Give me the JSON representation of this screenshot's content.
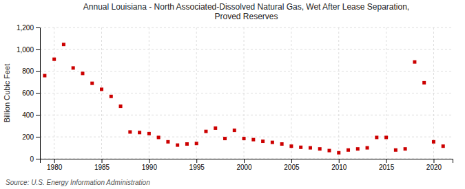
{
  "chart_data": {
    "type": "scatter",
    "title": "Annual Louisiana - North Associated-Dissolved Natural Gas, Wet After Lease Separation,\nProved Reserves",
    "ylabel": "Billion Cubic Feet",
    "annotation": "Source: U.S. Energy Information Administration",
    "color": "#cc0000",
    "marker": "square",
    "grid": true,
    "x": [
      1979,
      1980,
      1981,
      1982,
      1983,
      1984,
      1985,
      1986,
      1987,
      1988,
      1989,
      1990,
      1991,
      1992,
      1993,
      1994,
      1995,
      1996,
      1997,
      1998,
      1999,
      2000,
      2001,
      2002,
      2003,
      2004,
      2005,
      2006,
      2007,
      2008,
      2009,
      2010,
      2011,
      2012,
      2013,
      2014,
      2015,
      2016,
      2017,
      2018,
      2019,
      2020,
      2021
    ],
    "values": [
      760,
      910,
      1045,
      830,
      780,
      690,
      635,
      570,
      480,
      245,
      240,
      230,
      195,
      155,
      125,
      135,
      140,
      250,
      280,
      185,
      260,
      185,
      175,
      160,
      150,
      135,
      115,
      105,
      100,
      90,
      75,
      55,
      80,
      90,
      100,
      195,
      195,
      80,
      90,
      885,
      695,
      155,
      115
    ],
    "xlim": [
      1978.5,
      2022
    ],
    "xticks": [
      1980,
      1985,
      1990,
      1995,
      2000,
      2005,
      2010,
      2015,
      2020
    ],
    "ylim": [
      0,
      1200
    ],
    "yticks": [
      0,
      200,
      400,
      600,
      800,
      {
        "value": 1000,
        "label": "1,000"
      },
      {
        "value": 1200,
        "label": "1,200"
      }
    ]
  }
}
